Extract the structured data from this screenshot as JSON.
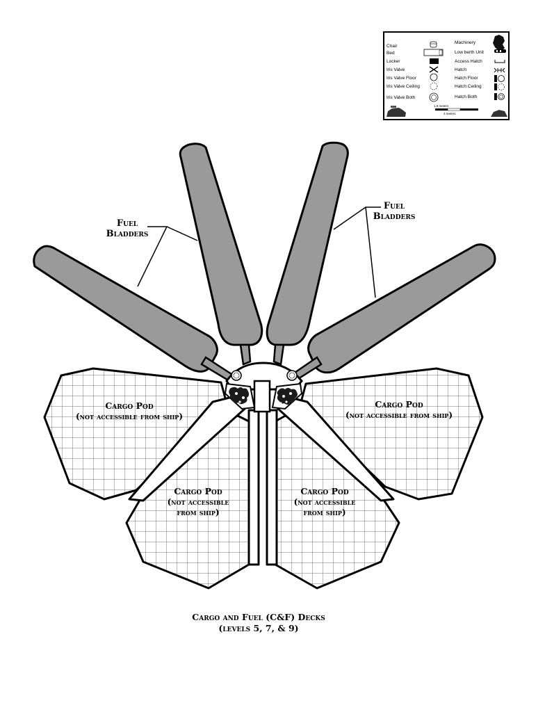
{
  "legend": {
    "left": [
      {
        "label": "Chair",
        "icon": "chair-icon"
      },
      {
        "label": "Bed",
        "icon": "bed-icon"
      },
      {
        "label": "Locker",
        "icon": "locker-icon"
      },
      {
        "label": "Iris Valve",
        "icon": "iris-valve-icon"
      },
      {
        "label": "Iris Valve Floor",
        "icon": "iris-valve-floor-icon"
      },
      {
        "label": "Iris Valve Ceiling",
        "icon": "iris-valve-ceiling-icon"
      },
      {
        "label": "Iris Valve Both",
        "icon": "iris-valve-both-icon"
      }
    ],
    "right": [
      {
        "label": "Machinery",
        "icon": "machinery-icon"
      },
      {
        "label": "Low berth Unit",
        "icon": "low-berth-icon"
      },
      {
        "label": "Access Hatch",
        "icon": "access-hatch-icon"
      },
      {
        "label": "Hatch",
        "icon": "hatch-icon"
      },
      {
        "label": "Hatch Floor",
        "icon": "hatch-floor-icon"
      },
      {
        "label": "Hatch Ceiling",
        "icon": "hatch-ceiling-icon"
      },
      {
        "label": "Hatch Both",
        "icon": "hatch-both-icon"
      }
    ],
    "scale_top": "1.5 meters",
    "scale_bottom": "3 meters"
  },
  "labels": {
    "fuel_left_1": "Fuel",
    "fuel_left_2": "Bladders",
    "fuel_right_1": "Fuel",
    "fuel_right_2": "Bladders",
    "pod_ul_1": "Cargo Pod",
    "pod_ul_2": "(not accessible from ship)",
    "pod_ur_1": "Cargo Pod",
    "pod_ur_2": "(not accessible from ship)",
    "pod_ll_1": "Cargo Pod",
    "pod_ll_2": "(not accessible",
    "pod_ll_3": "from ship)",
    "pod_lr_1": "Cargo Pod",
    "pod_lr_2": "(not accessible",
    "pod_lr_3": "from ship)",
    "caption_1": "Cargo and Fuel (C&F) Decks",
    "caption_2": "(levels 5, 7, & 9)"
  },
  "colors": {
    "bladder_fill": "#9a9a9a",
    "outline": "#000000",
    "grid": "#777777"
  }
}
